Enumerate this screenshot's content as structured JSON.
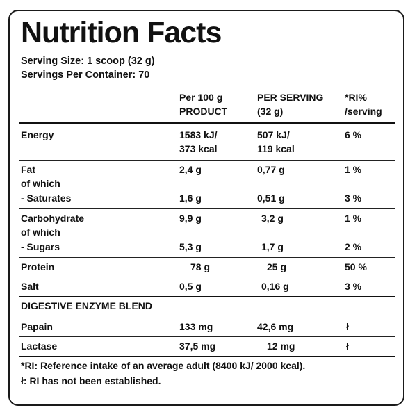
{
  "title": "Nutrition Facts",
  "serving_size": "Serving Size: 1 scoop (32 g)",
  "servings_per_container": "Servings Per Container: 70",
  "headers": {
    "per100_line1": "Per 100 g",
    "per100_line2": "PRODUCT",
    "perserving_line1": "PER SERVING",
    "perserving_line2": "(32 g)",
    "ri_line1": "*RI%",
    "ri_line2": "/serving"
  },
  "rows": {
    "energy": {
      "label": "Energy",
      "per100_kj": "1583 kJ/",
      "per100_kcal": "373 kcal",
      "serving_kj": "507 kJ/",
      "serving_kcal": "119 kcal",
      "ri": "6 %"
    },
    "fat": {
      "label": "Fat",
      "per100": "2,4 g",
      "serving": "0,77 g",
      "ri": "1 %"
    },
    "fat_of_which": "of which",
    "saturates": {
      "label": "- Saturates",
      "per100": "1,6 g",
      "serving": "0,51 g",
      "ri": "3 %"
    },
    "carbohydrate": {
      "label": "Carbohydrate",
      "per100": "9,9 g",
      "serving": "3,2 g",
      "ri": "1 %"
    },
    "carb_of_which": "of which",
    "sugars": {
      "label": "- Sugars",
      "per100": "5,3 g",
      "serving": "1,7 g",
      "ri": "2 %"
    },
    "protein": {
      "label": "Protein",
      "per100": "78 g",
      "serving": "25 g",
      "ri": "50 %"
    },
    "salt": {
      "label": "Salt",
      "per100": "0,5 g",
      "serving": "0,16 g",
      "ri": "3 %"
    }
  },
  "enzyme_section": {
    "heading": "DIGESTIVE ENZYME BLEND",
    "papain": {
      "label": "Papain",
      "per100": "133 mg",
      "serving": "42,6 mg",
      "ri": "ł"
    },
    "lactase": {
      "label": "Lactase",
      "per100": "37,5 mg",
      "serving": "12 mg",
      "ri": "ł"
    }
  },
  "footnotes": {
    "ri_note": "*RI: Reference intake of an average adult (8400 kJ/ 2000 kcal).",
    "not_established": "ł: RI has not been established."
  }
}
